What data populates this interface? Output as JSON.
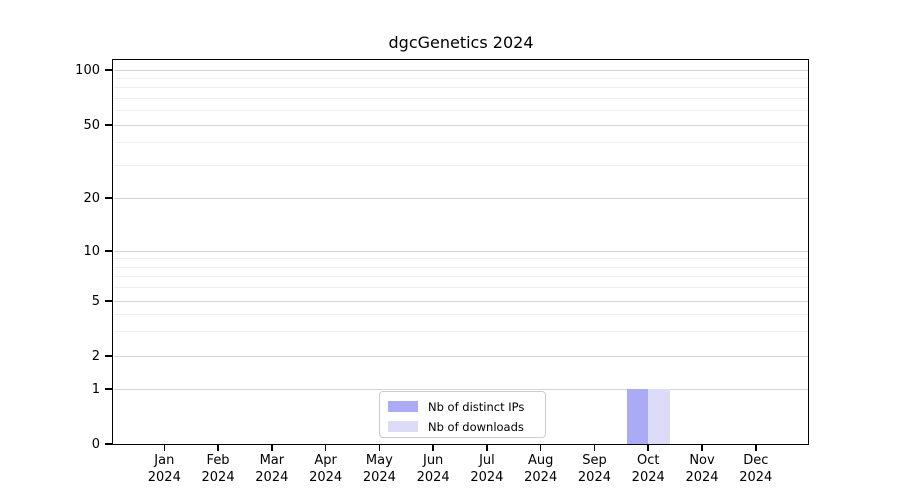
{
  "title": "dgcGenetics 2024",
  "chart_data": {
    "type": "bar",
    "title": "dgcGenetics 2024",
    "categories": [
      "Jan 2024",
      "Feb 2024",
      "Mar 2024",
      "Apr 2024",
      "May 2024",
      "Jun 2024",
      "Jul 2024",
      "Aug 2024",
      "Sep 2024",
      "Oct 2024",
      "Nov 2024",
      "Dec 2024"
    ],
    "series": [
      {
        "name": "Nb of distinct IPs",
        "color": "#aaaaf5",
        "values": [
          0,
          0,
          0,
          0,
          0,
          0,
          0,
          0,
          0,
          1,
          0,
          0
        ]
      },
      {
        "name": "Nb of downloads",
        "color": "#dcdcf8",
        "values": [
          0,
          0,
          0,
          0,
          0,
          0,
          0,
          0,
          0,
          1,
          0,
          0
        ]
      }
    ],
    "y_axis": {
      "scale": "log-like",
      "major_ticks": [
        0,
        1,
        2,
        5,
        10,
        20,
        50,
        100
      ],
      "minor_ticks": [
        3,
        4,
        6,
        7,
        8,
        9,
        30,
        40,
        60,
        70,
        80,
        90
      ]
    },
    "x_axis": {
      "label_line2": "2024"
    },
    "legend": {
      "position": "bottom-center",
      "entries": [
        "Nb of distinct IPs",
        "Nb of downloads"
      ]
    },
    "grid": true,
    "colors": {
      "grid_major": "#d4d4d4",
      "grid_minor": "#efefef",
      "axis": "#000000",
      "background": "#ffffff",
      "legend_border": "#cccccc"
    }
  }
}
